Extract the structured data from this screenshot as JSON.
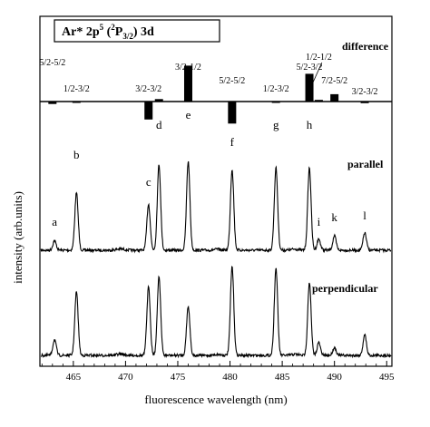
{
  "chart_data": {
    "type": "line",
    "title_parts": {
      "species": "Ar* 2p",
      "sup5": "5",
      "paren_open": " (",
      "sup2": "2",
      "term": "P",
      "sub": "3/2",
      "paren_close": ")",
      "tail": " 3d"
    },
    "xlabel": "fluorescence wavelength (nm)",
    "ylabel": "intensity (arb.units)",
    "xlim": [
      461.8,
      495.5
    ],
    "x_ticks": [
      465,
      470,
      475,
      480,
      485,
      490,
      495
    ],
    "grid": false,
    "difference_panel": {
      "label": "difference",
      "bars": [
        {
          "x": 463.0,
          "value": -0.3,
          "label": "5/2-5/2"
        },
        {
          "x": 465.3,
          "value": -0.1,
          "label": "1/2-3/2"
        },
        {
          "x": 472.2,
          "value": -2.2,
          "label": "3/2-3/2"
        },
        {
          "x": 473.2,
          "value": 0.3,
          "label": ""
        },
        {
          "x": 476.0,
          "value": 4.4,
          "label": "3/2-1/2"
        },
        {
          "x": 480.2,
          "value": -2.7,
          "label": "5/2-5/2"
        },
        {
          "x": 484.4,
          "value": -0.1,
          "label": "1/2-3/2"
        },
        {
          "x": 487.6,
          "value": 3.4,
          "label": "5/2-3/2"
        },
        {
          "x": 488.5,
          "value": 0.2,
          "label": "1/2-1/2"
        },
        {
          "x": 490.0,
          "value": 0.9,
          "label": "7/2-5/2"
        },
        {
          "x": 492.9,
          "value": -0.2,
          "label": "3/2-3/2"
        }
      ]
    },
    "series": [
      {
        "name": "parallel",
        "peaks": [
          {
            "x": 463.2,
            "value": 0.6,
            "label": "a"
          },
          {
            "x": 465.3,
            "value": 3.6,
            "label": "b"
          },
          {
            "x": 472.2,
            "value": 2.9,
            "label": "c"
          },
          {
            "x": 473.2,
            "value": 5.4,
            "label": "d"
          },
          {
            "x": 476.0,
            "value": 5.6,
            "label": "e"
          },
          {
            "x": 480.2,
            "value": 5.1,
            "label": "f"
          },
          {
            "x": 484.4,
            "value": 5.2,
            "label": "g"
          },
          {
            "x": 487.6,
            "value": 5.2,
            "label": "h"
          },
          {
            "x": 488.5,
            "value": 0.7,
            "label": "i"
          },
          {
            "x": 490.0,
            "value": 0.9,
            "label": "k"
          },
          {
            "x": 492.9,
            "value": 1.1,
            "label": "l"
          }
        ]
      },
      {
        "name": "perpendicular",
        "peaks": [
          {
            "x": 463.2,
            "value": 1.0
          },
          {
            "x": 465.3,
            "value": 4.0
          },
          {
            "x": 472.2,
            "value": 4.3
          },
          {
            "x": 473.2,
            "value": 5.0
          },
          {
            "x": 476.0,
            "value": 3.1
          },
          {
            "x": 480.2,
            "value": 5.6
          },
          {
            "x": 484.4,
            "value": 5.5
          },
          {
            "x": 487.6,
            "value": 4.6
          },
          {
            "x": 488.5,
            "value": 0.8
          },
          {
            "x": 490.0,
            "value": 0.5
          },
          {
            "x": 492.9,
            "value": 1.3
          }
        ]
      }
    ]
  }
}
